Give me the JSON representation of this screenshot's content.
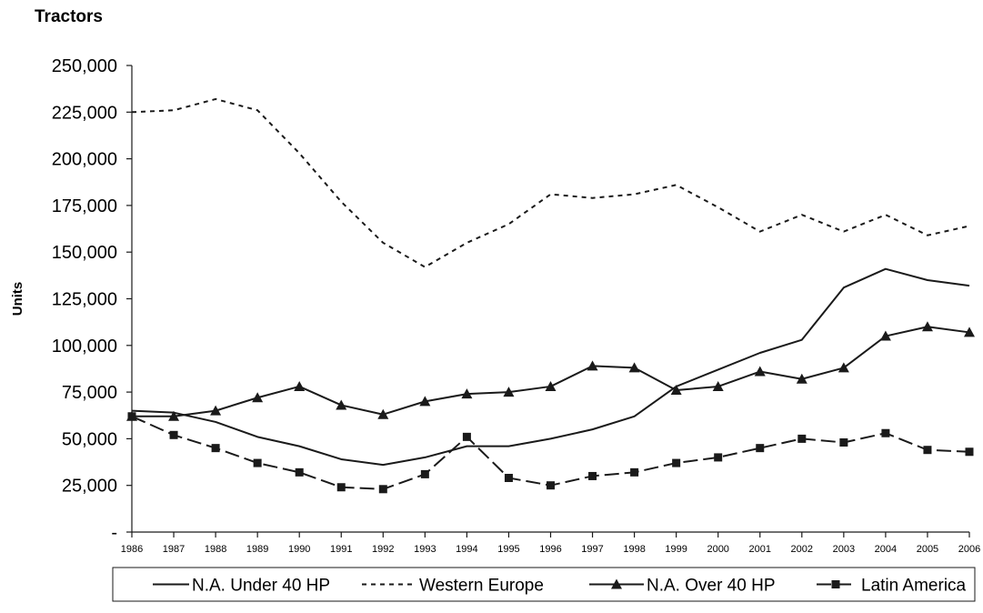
{
  "chart_data": {
    "type": "line",
    "title": "Tractors",
    "xlabel": "",
    "ylabel": "Units",
    "ylim": [
      0,
      250000
    ],
    "yticks": [
      0,
      25000,
      50000,
      75000,
      100000,
      125000,
      150000,
      175000,
      200000,
      225000,
      250000
    ],
    "ytick_labels": [
      "-",
      "25,000",
      "50,000",
      "75,000",
      "100,000",
      "125,000",
      "150,000",
      "175,000",
      "200,000",
      "225,000",
      "250,000"
    ],
    "grid": false,
    "legend_position": "bottom",
    "categories": [
      "1986",
      "1987",
      "1988",
      "1989",
      "1990",
      "1991",
      "1992",
      "1993",
      "1994",
      "1995",
      "1996",
      "1997",
      "1998",
      "1999",
      "2000",
      "2001",
      "2002",
      "2003",
      "2004",
      "2005",
      "2006"
    ],
    "series": [
      {
        "name": "N.A. Under 40 HP",
        "style": "solid",
        "marker": "none",
        "values": [
          65000,
          64000,
          59000,
          51000,
          46000,
          39000,
          36000,
          40000,
          46000,
          46000,
          50000,
          55000,
          62000,
          78000,
          87000,
          96000,
          103000,
          131000,
          141000,
          135000,
          132000
        ]
      },
      {
        "name": "Western Europe",
        "style": "dotted",
        "marker": "none",
        "values": [
          225000,
          226000,
          232000,
          226000,
          203000,
          177000,
          155000,
          142000,
          155000,
          165000,
          181000,
          179000,
          181000,
          186000,
          174000,
          161000,
          170000,
          161000,
          170000,
          159000,
          164000
        ]
      },
      {
        "name": "N.A. Over 40 HP",
        "style": "solid",
        "marker": "triangle",
        "values": [
          62000,
          62000,
          65000,
          72000,
          78000,
          68000,
          63000,
          70000,
          74000,
          75000,
          78000,
          89000,
          88000,
          76000,
          78000,
          86000,
          82000,
          88000,
          105000,
          110000,
          107000
        ]
      },
      {
        "name": "Latin America",
        "style": "dashed",
        "marker": "square",
        "values": [
          62000,
          52000,
          45000,
          37000,
          32000,
          24000,
          23000,
          31000,
          51000,
          29000,
          25000,
          30000,
          32000,
          37000,
          40000,
          45000,
          50000,
          48000,
          53000,
          44000,
          43000
        ]
      }
    ],
    "colors": {
      "line": "#1a1a1a",
      "background": "#ffffff"
    }
  }
}
